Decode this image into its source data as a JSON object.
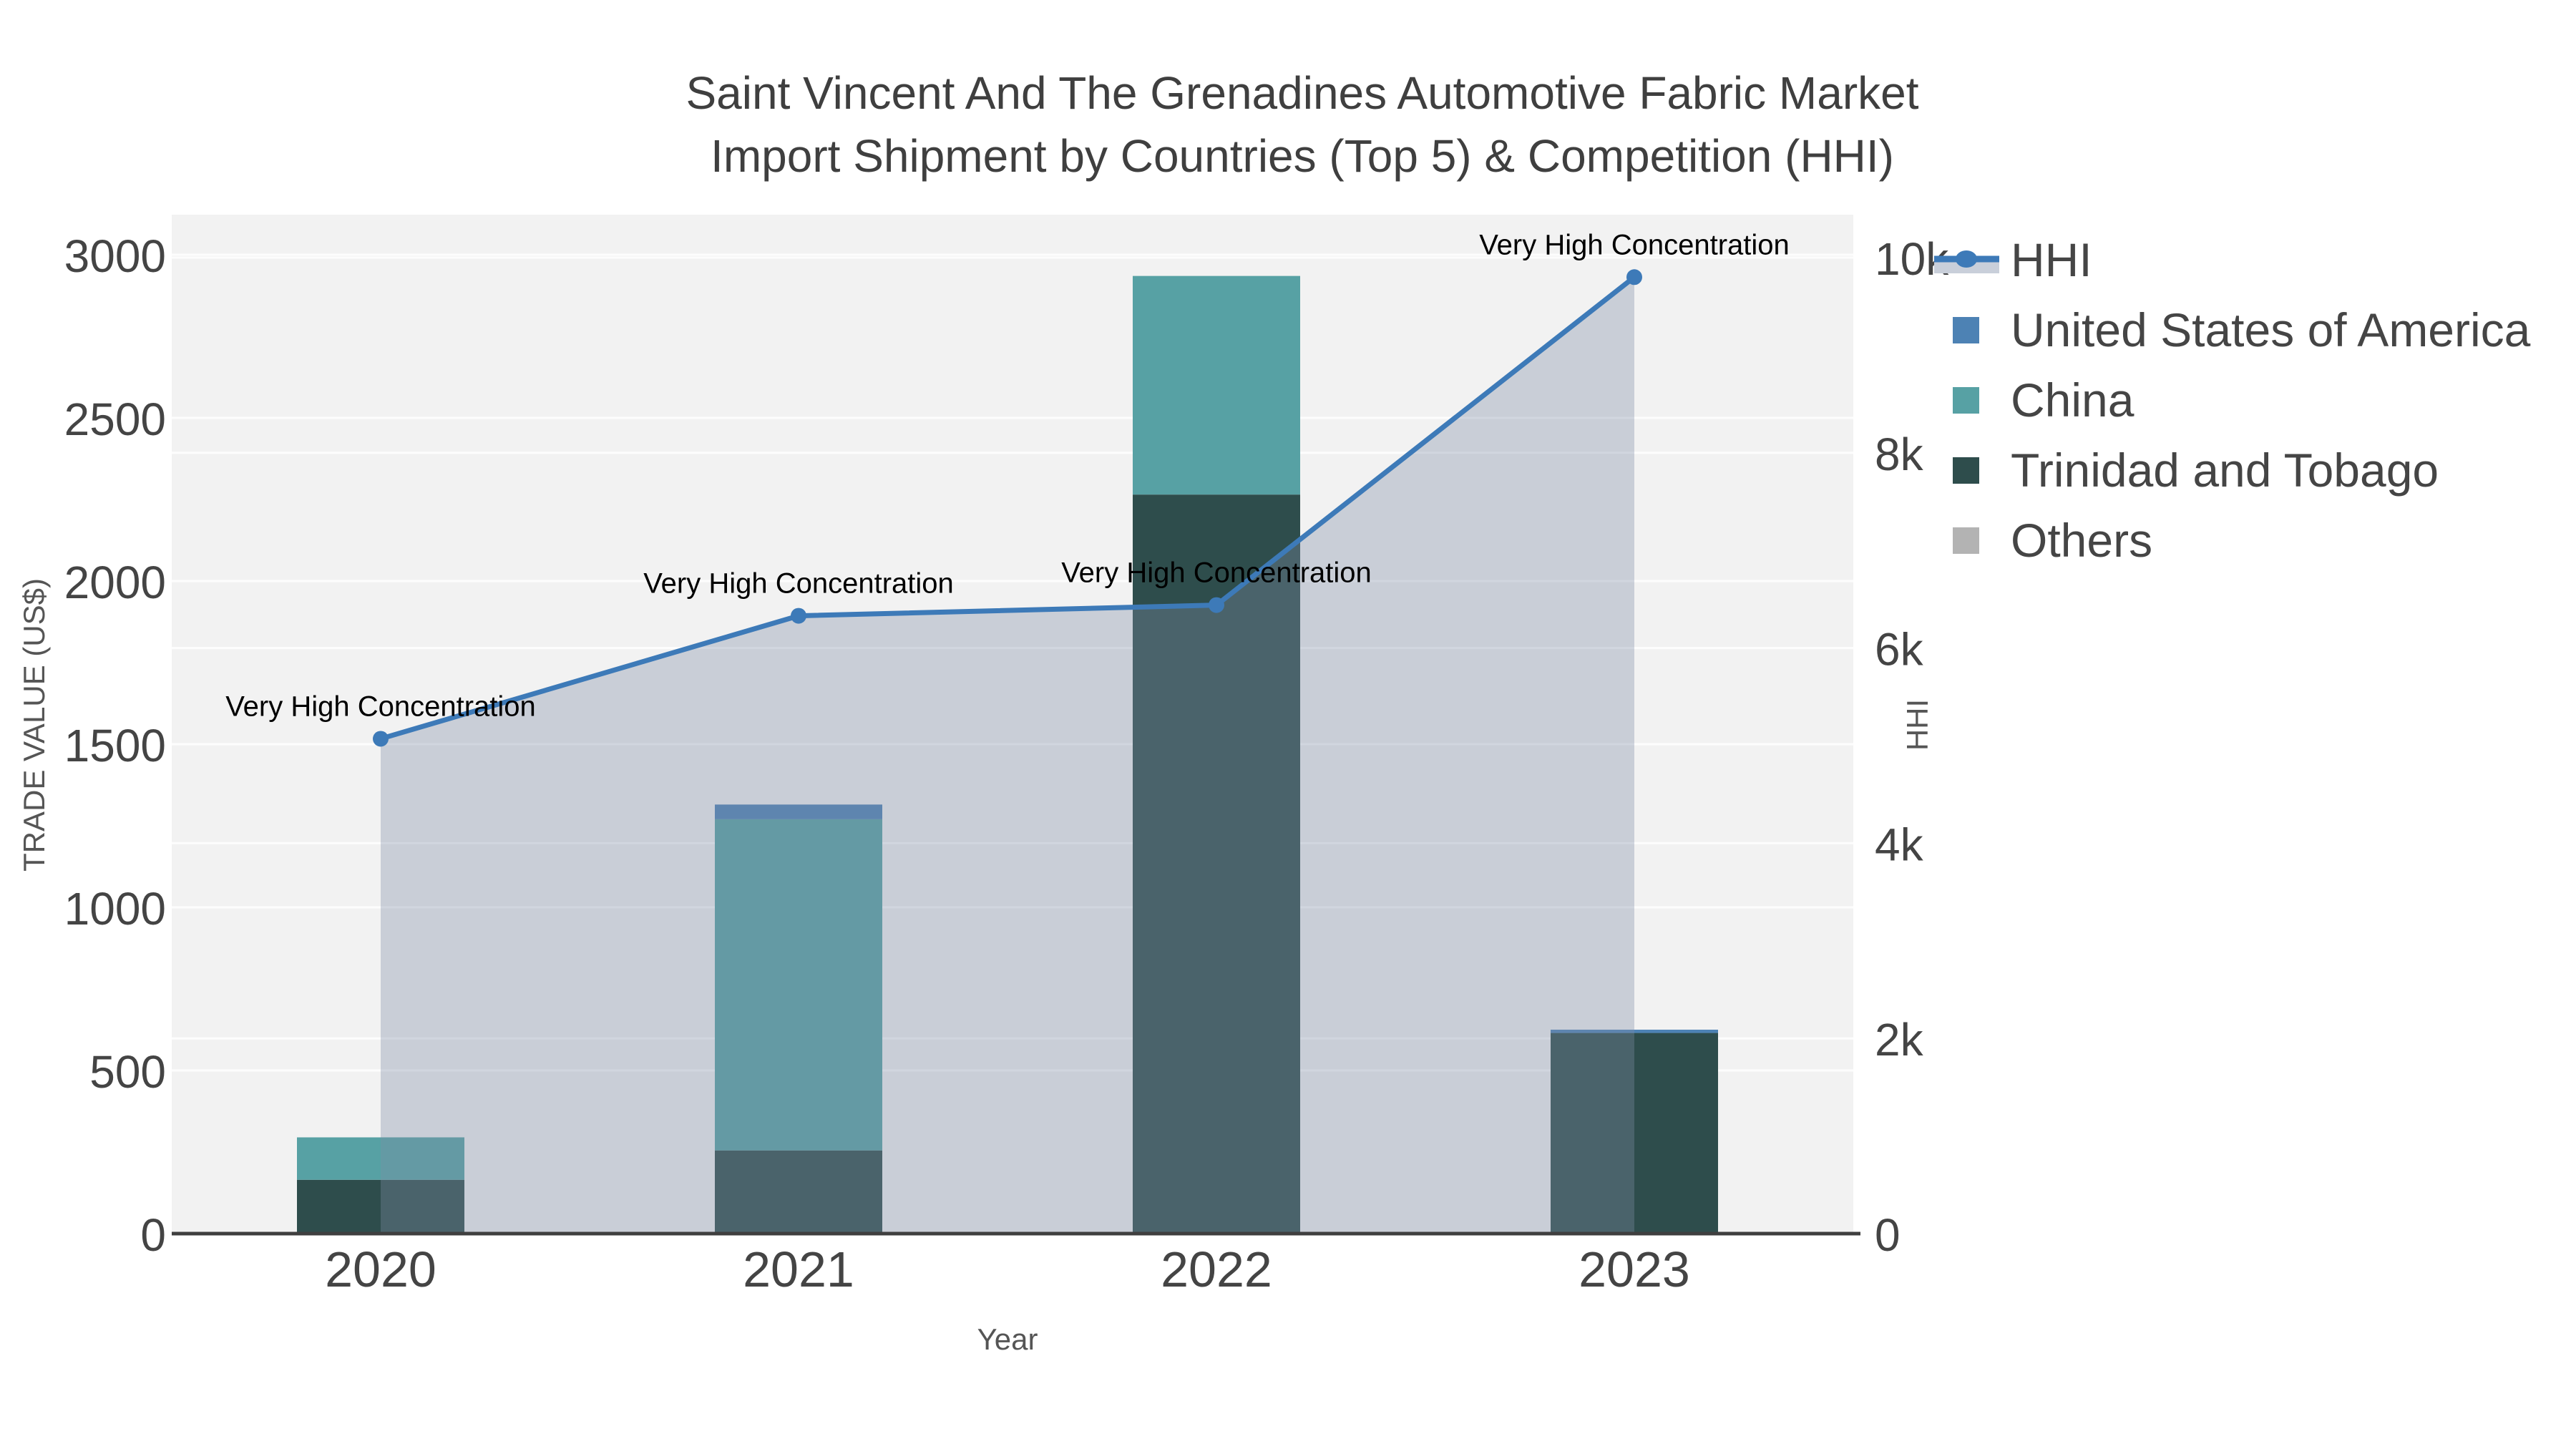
{
  "title": {
    "line1": "Saint Vincent And The Grenadines Automotive Fabric Market",
    "line2": "Import Shipment by Countries (Top 5) & Competition (HHI)"
  },
  "chart_data": {
    "type": "combo: stacked bar (trade value) + line with area (HHI)",
    "categories": [
      "2020",
      "2021",
      "2022",
      "2023"
    ],
    "bar_series": [
      {
        "name": "United States of America",
        "color": "#4d82b4",
        "values": [
          0,
          45,
          0,
          10
        ]
      },
      {
        "name": "China",
        "color": "#57a1a4",
        "values": [
          130,
          1015,
          670,
          0
        ]
      },
      {
        "name": "Trinidad and Tobago",
        "color": "#2e4d4c",
        "values": [
          165,
          255,
          2265,
          615
        ]
      },
      {
        "name": "Others",
        "color": "#b3b3b3",
        "values": [
          0,
          0,
          0,
          0
        ]
      }
    ],
    "stack_order": [
      "Trinidad and Tobago",
      "China",
      "United States of America",
      "Others"
    ],
    "bar_totals": [
      295,
      1315,
      2935,
      625
    ],
    "line_series": {
      "name": "HHI",
      "color": "#3d7ab8",
      "area_fill": "rgba(126,140,165,0.35)",
      "values": [
        5070,
        6330,
        6440,
        9800
      ],
      "axis": "right"
    },
    "annotations": [
      {
        "text": "Very High Concentration",
        "category_index": 0
      },
      {
        "text": "Very High Concentration",
        "category_index": 1
      },
      {
        "text": "Very High Concentration",
        "category_index": 2
      },
      {
        "text": "Very High Concentration",
        "category_index": 3
      }
    ],
    "left_axis": {
      "title": "TRADE VALUE (US$)",
      "range": [
        0,
        3000
      ],
      "tick_values": [
        0,
        500,
        1000,
        1500,
        2000,
        2500,
        3000
      ],
      "tick_labels": [
        "0",
        "500",
        "1000",
        "1500",
        "2000",
        "2500",
        "3000"
      ]
    },
    "right_axis": {
      "title": "HHI",
      "range": [
        0,
        10000
      ],
      "tick_values": [
        0,
        2000,
        4000,
        6000,
        8000,
        10000
      ],
      "tick_labels": [
        "0",
        "2k",
        "4k",
        "6k",
        "8k",
        "10k"
      ]
    },
    "x_axis": {
      "title": "Year"
    },
    "grid": true,
    "plot_bg": "#f2f2f2",
    "gridline_color": "#ffffff",
    "axis_line_color": "#3f3f3f",
    "legend_position": "right"
  },
  "legend": {
    "items": [
      {
        "label": "HHI",
        "type": "line",
        "color": "#3d7ab8",
        "area_color": "#c9cfda"
      },
      {
        "label": "United States of America",
        "type": "bar",
        "color": "#4d82b4"
      },
      {
        "label": "China",
        "type": "bar",
        "color": "#57a1a4"
      },
      {
        "label": "Trinidad and Tobago",
        "type": "bar",
        "color": "#2e4d4c"
      },
      {
        "label": "Others",
        "type": "bar",
        "color": "#b3b3b3"
      }
    ]
  }
}
